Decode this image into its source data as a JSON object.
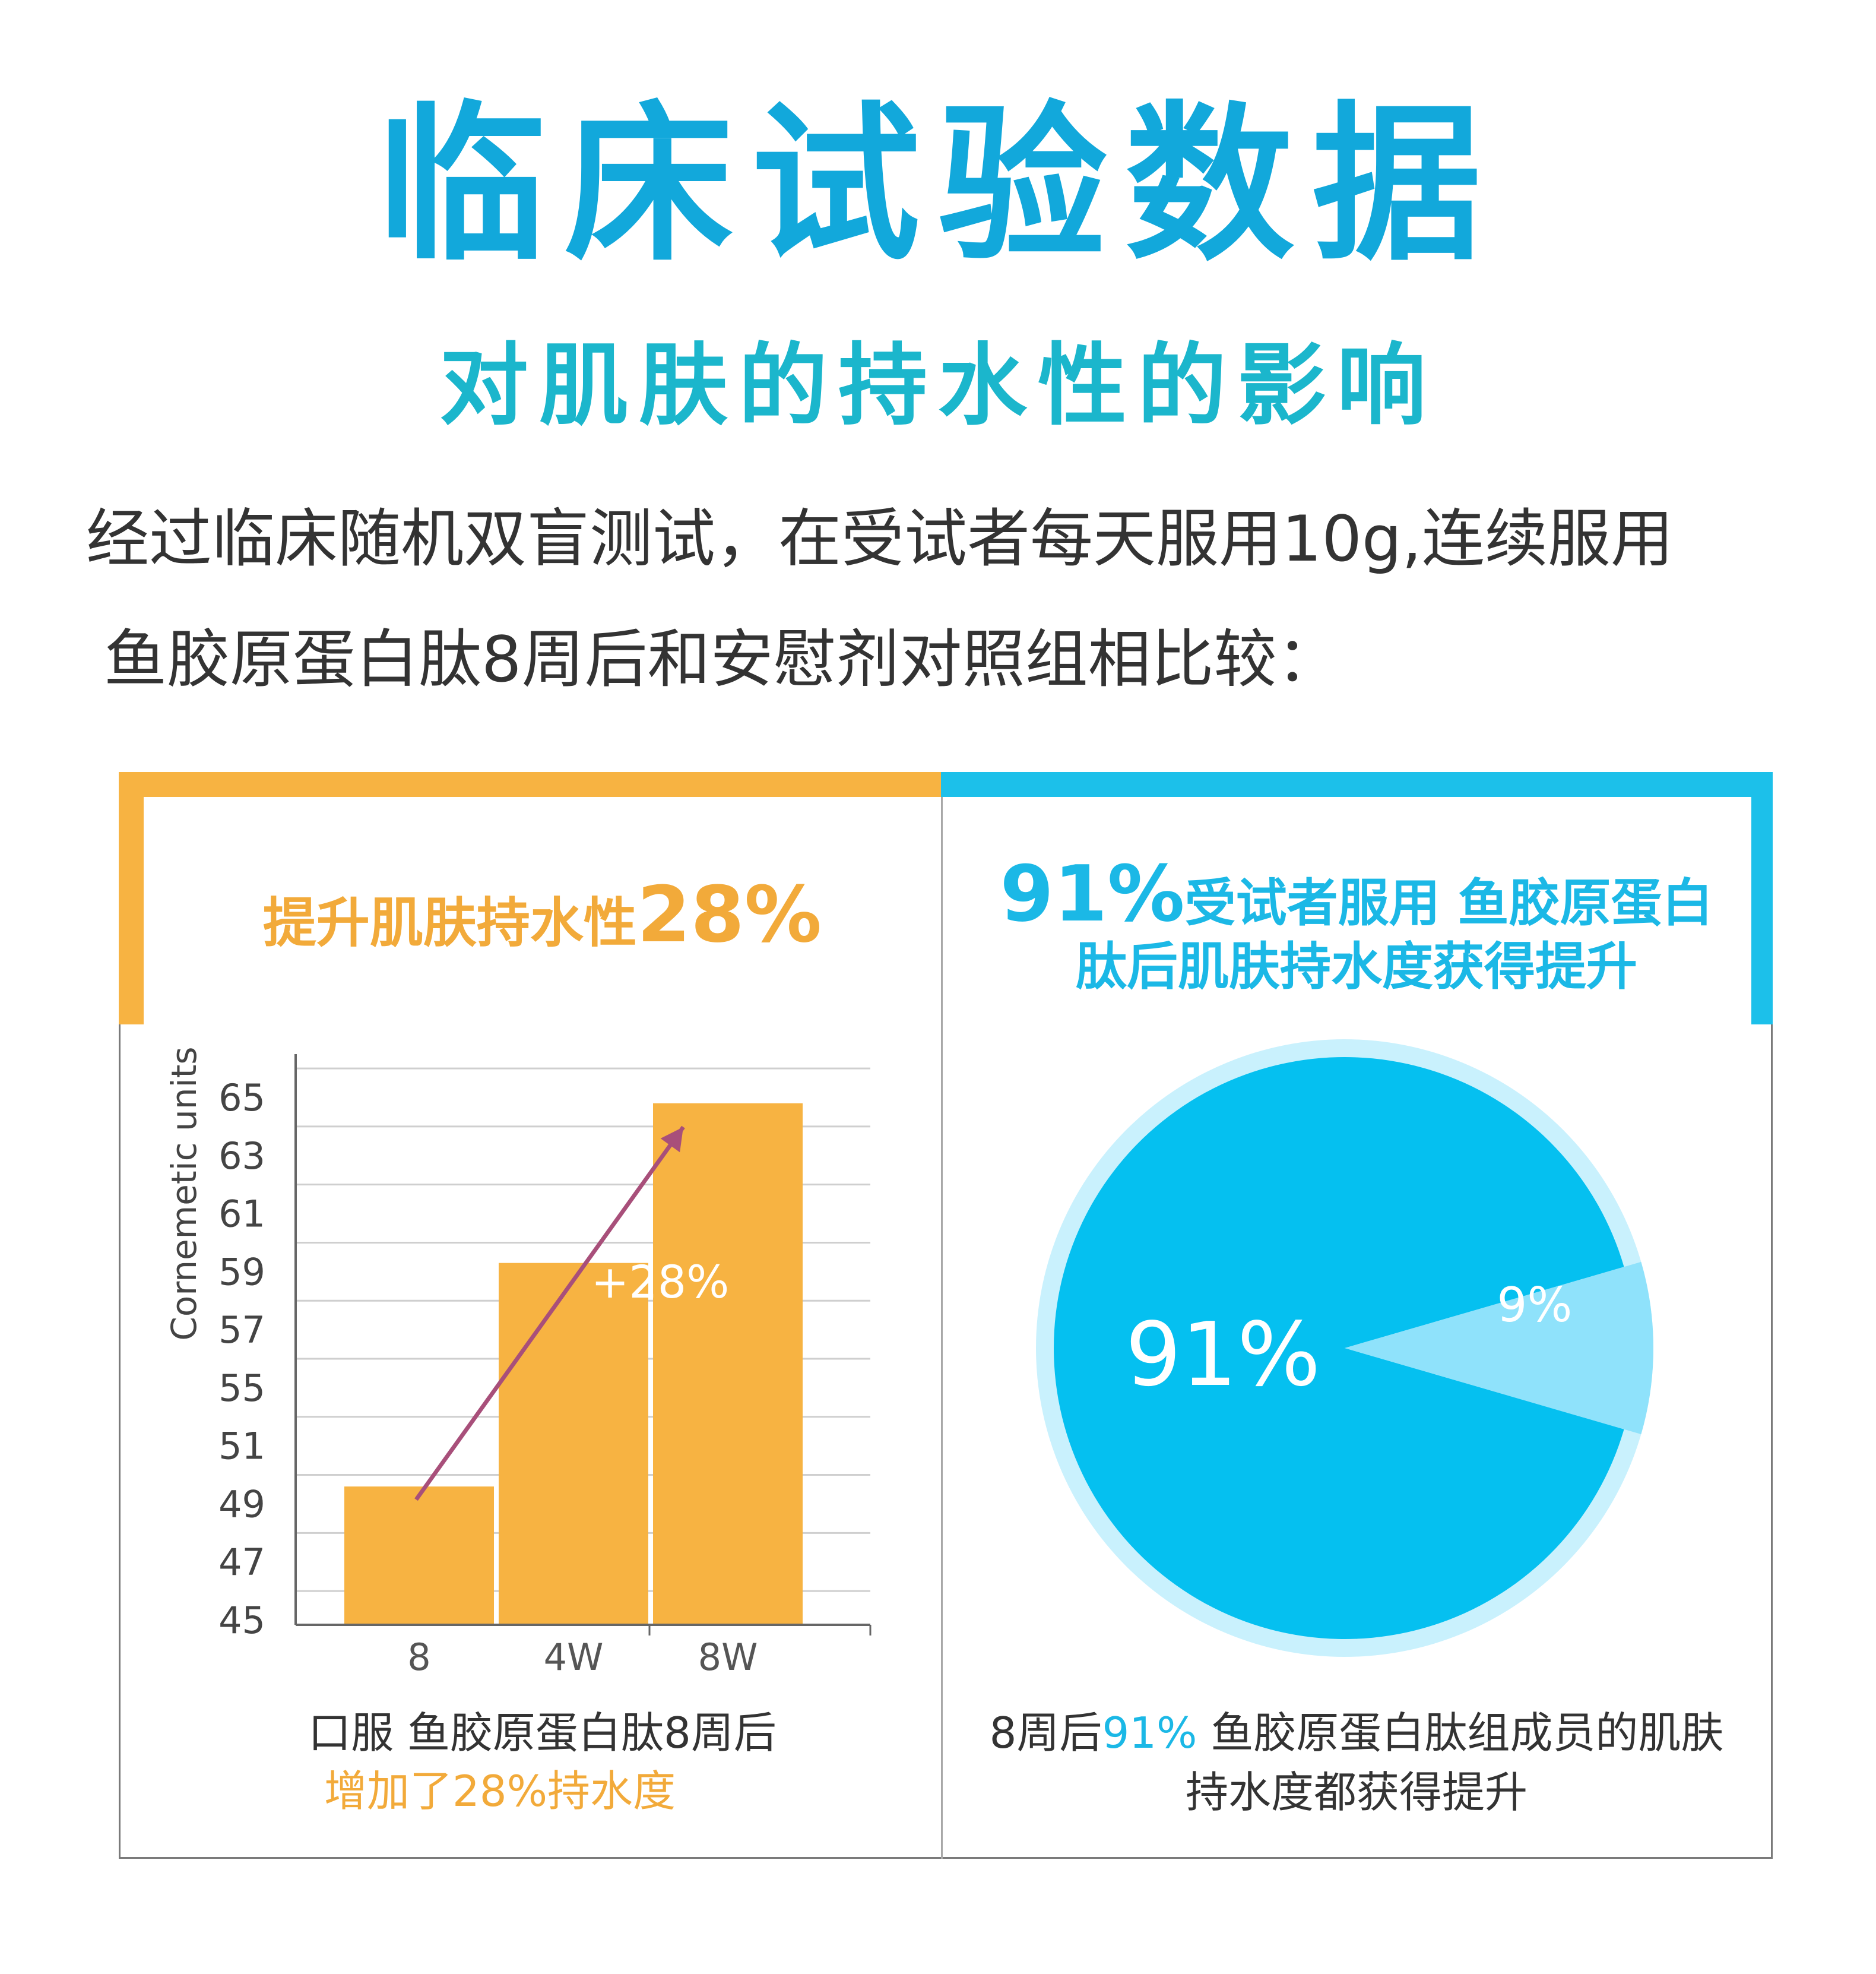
{
  "header": {
    "title": "临床试验数据",
    "subtitle": "对肌肤的持水性的影响",
    "intro_line1": "经过临床随机双盲测试，在受试者每天服用10g,连续服用",
    "intro_line2": "鱼胶原蛋白肽8周后和安慰剂对照组相比较："
  },
  "left_panel": {
    "heading_text": "提升肌肤持水性",
    "heading_value": "28%",
    "caption_line1": "口服 鱼胶原蛋白肽8周后",
    "caption_line2": "增加了28%持水度"
  },
  "right_panel": {
    "heading_value": "91%",
    "heading_line1": "受试者服用 鱼胶原蛋白",
    "heading_line2": "肽后肌肤持水度获得提升",
    "caption_prefix": "8周后",
    "caption_value": "91%",
    "caption_suffix": " 鱼胶原蛋白肽组成员的肌肤",
    "caption_line2": "持水度都获得提升"
  },
  "colors": {
    "title": "#12a8db",
    "orange": "#f7b342",
    "blue": "#1cc0ea",
    "pie_main": "#05c0f0",
    "pie_slice": "#8fe2fb",
    "pie_halo": "#c9f1fd",
    "arrow": "#a84f7a"
  },
  "chart_data": [
    {
      "type": "bar",
      "ylabel": "Cornemetic units",
      "yticks": [
        "45",
        "47",
        "49",
        "51",
        "55",
        "57",
        "59",
        "61",
        "63",
        "65"
      ],
      "categories": [
        "8",
        "4W",
        "8W"
      ],
      "values": [
        49.6,
        59.3,
        64.8
      ],
      "annotation": "+28%",
      "arrow": {
        "from_category": "8",
        "to_category": "8W"
      },
      "grid": true
    },
    {
      "type": "pie",
      "slices": [
        {
          "label": "91%",
          "value": 91
        },
        {
          "label": "9%",
          "value": 9
        }
      ]
    }
  ]
}
